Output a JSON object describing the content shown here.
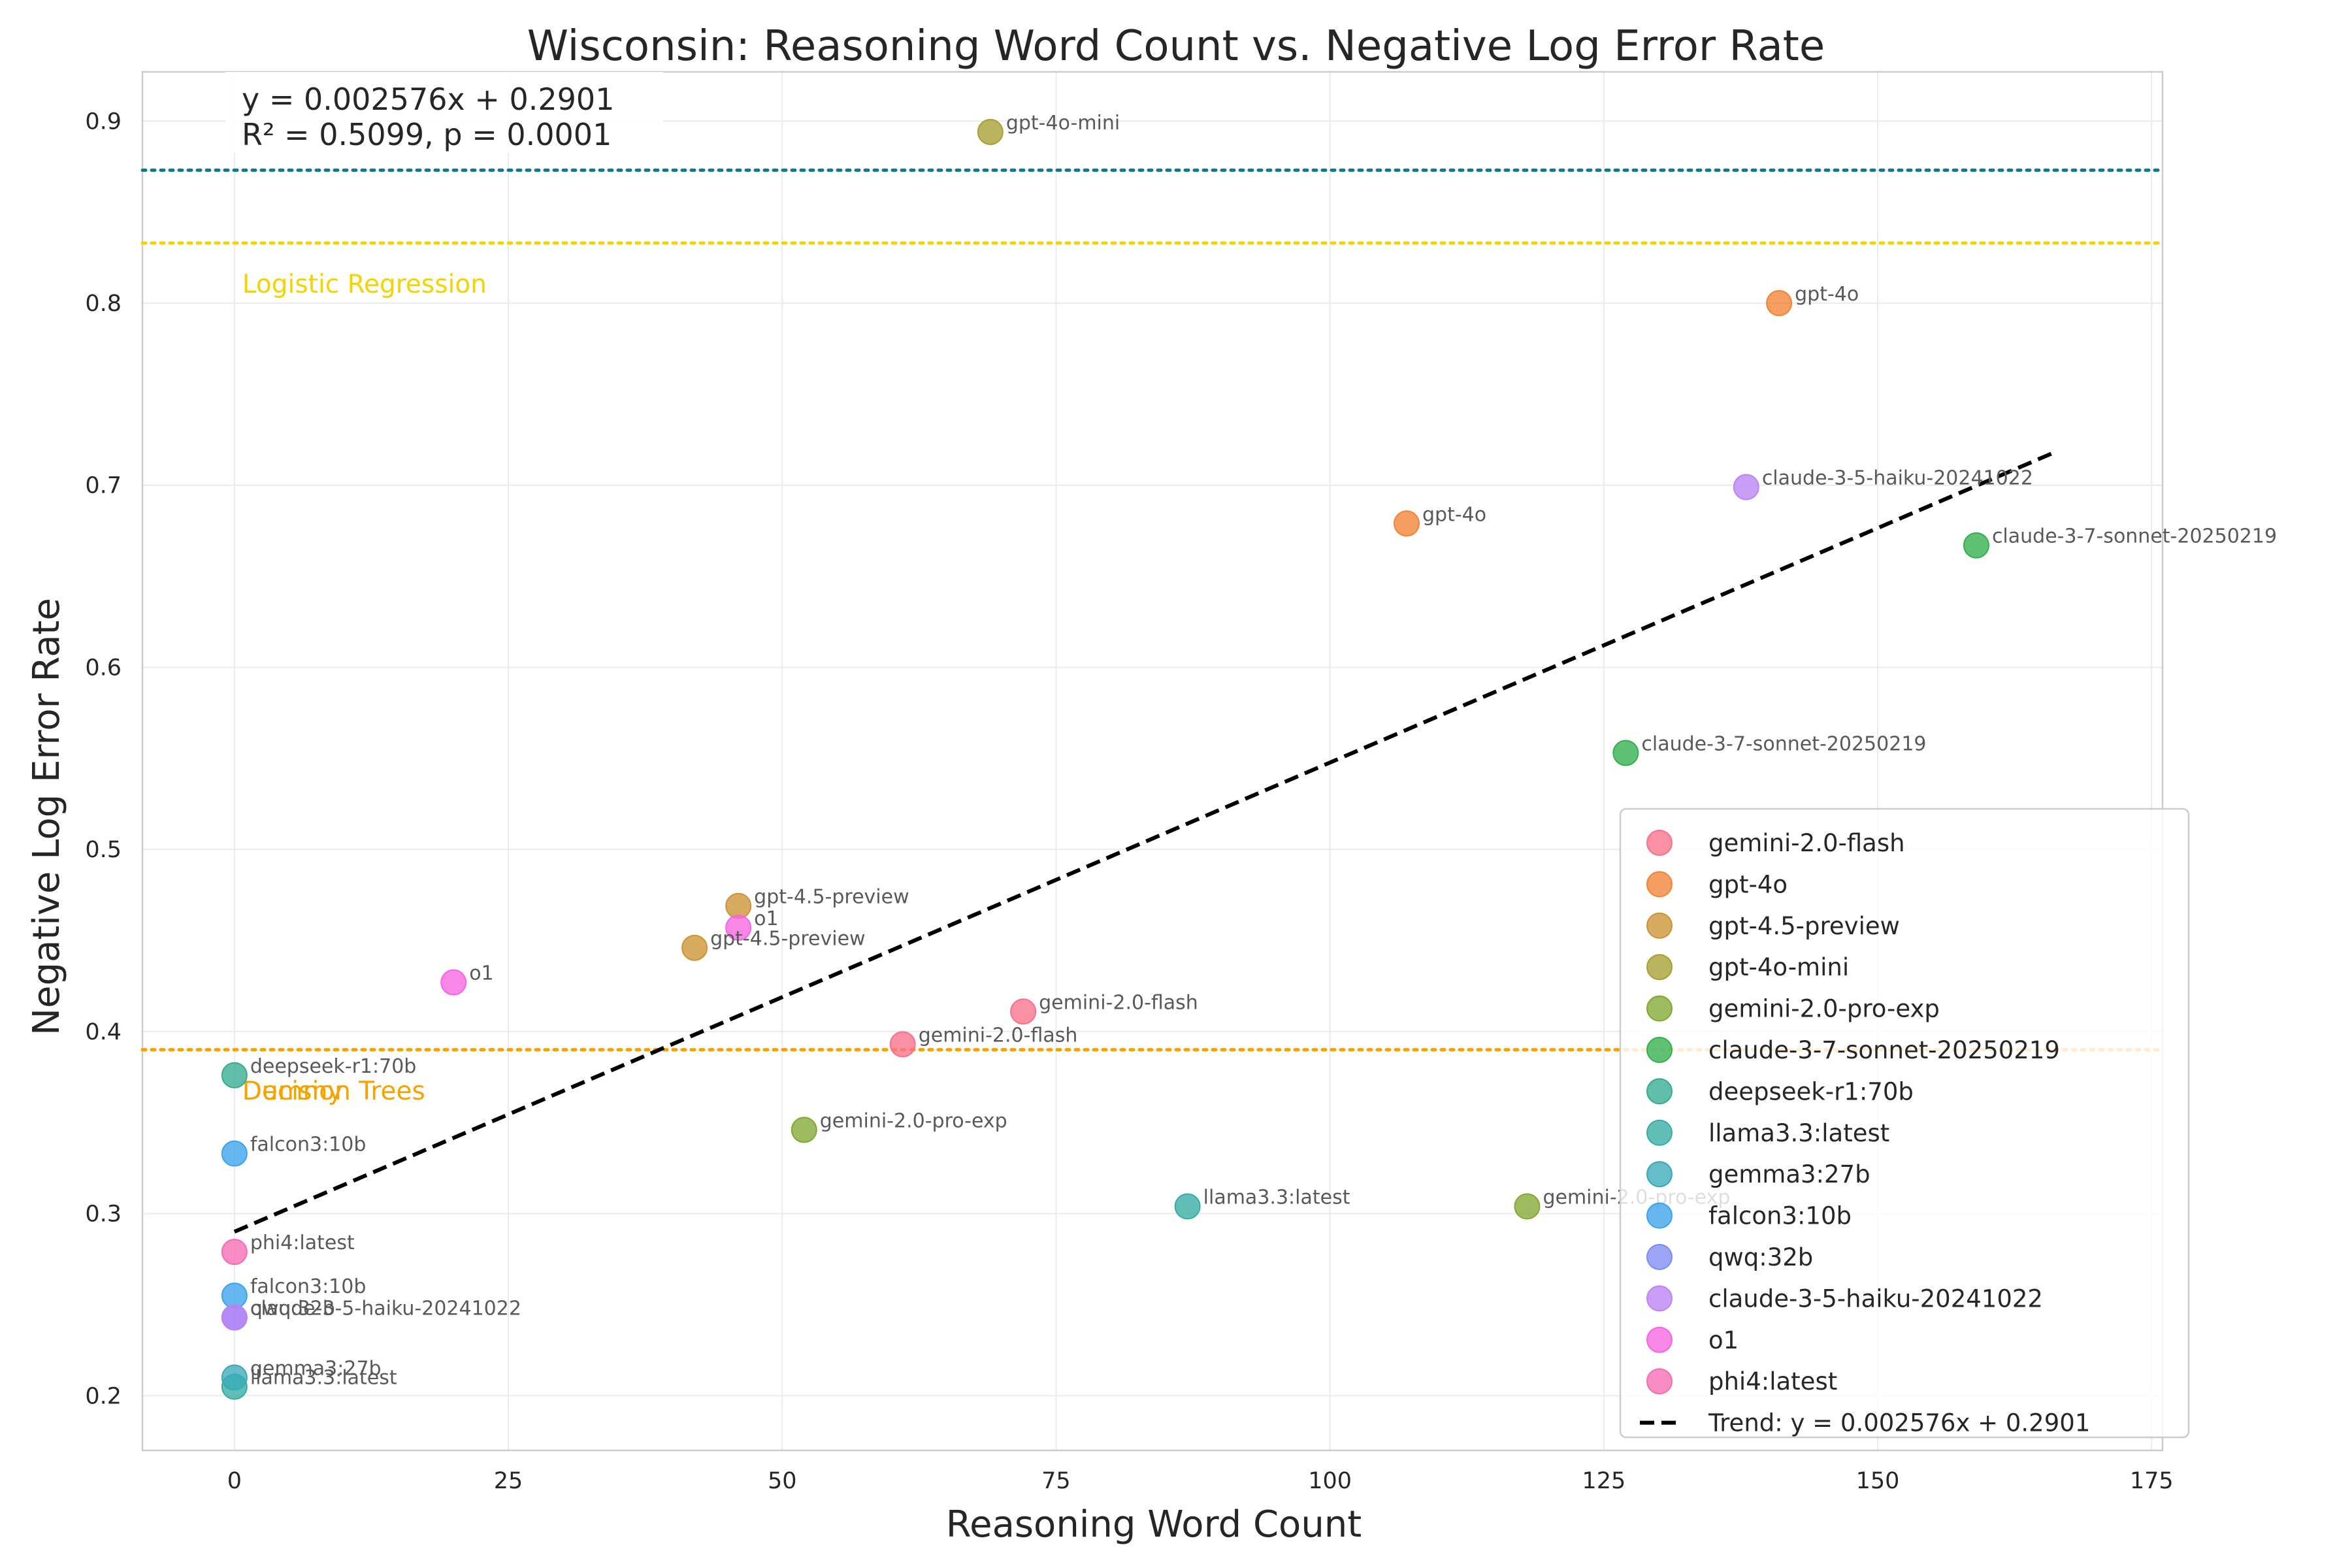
{
  "chart_data": {
    "type": "scatter",
    "title": "Wisconsin: Reasoning Word Count vs. Negative Log Error Rate",
    "xlabel": "Reasoning Word Count",
    "ylabel": "Negative Log Error Rate",
    "xlim": [
      -8.4,
      176
    ],
    "ylim": [
      0.17,
      0.927
    ],
    "xticks": [
      0,
      25,
      50,
      75,
      100,
      125,
      150,
      175
    ],
    "yticks": [
      0.2,
      0.3,
      0.4,
      0.5,
      0.6,
      0.7,
      0.8,
      0.9
    ],
    "grid": true,
    "legend_position": "lower-right",
    "equation_box": {
      "line1": "y = 0.002576x + 0.2901",
      "line2": "R² = 0.5099, p = 0.0001"
    },
    "trend": {
      "label": "Trend: y = 0.002576x + 0.2901",
      "slope": 0.002576,
      "intercept": 0.2901,
      "x_range": [
        0,
        166
      ],
      "color": "#000000"
    },
    "reference_lines": [
      {
        "label": "",
        "y": 0.873,
        "color": "#0e7c86"
      },
      {
        "label": "Logistic Regression",
        "y": 0.833,
        "color": "#f5d300"
      },
      {
        "label": "Decision Trees",
        "y": 0.39,
        "color": "#f5a300"
      },
      {
        "label": "Dummy",
        "y": 0.39,
        "color": "#f5a300"
      }
    ],
    "series": [
      {
        "name": "gemini-2.0-flash",
        "color": "#f77189",
        "points": [
          [
            72,
            0.411
          ],
          [
            61,
            0.393
          ]
        ]
      },
      {
        "name": "gpt-4o",
        "color": "#f28334",
        "points": [
          [
            141,
            0.8
          ],
          [
            107,
            0.679
          ]
        ]
      },
      {
        "name": "gpt-4.5-preview",
        "color": "#cc9433",
        "points": [
          [
            46,
            0.469
          ],
          [
            42,
            0.446
          ]
        ]
      },
      {
        "name": "gpt-4o-mini",
        "color": "#a79f31",
        "points": [
          [
            69,
            0.894
          ]
        ]
      },
      {
        "name": "gemini-2.0-pro-exp",
        "color": "#81a932",
        "points": [
          [
            52,
            0.346
          ],
          [
            118,
            0.304
          ]
        ]
      },
      {
        "name": "claude-3-7-sonnet-20250219",
        "color": "#32b04d",
        "points": [
          [
            159,
            0.667
          ],
          [
            127,
            0.553
          ]
        ]
      },
      {
        "name": "deepseek-r1:70b",
        "color": "#35ac8f",
        "points": [
          [
            0,
            0.376
          ]
        ]
      },
      {
        "name": "llama3.3:latest",
        "color": "#36ada4",
        "points": [
          [
            87,
            0.304
          ],
          [
            0,
            0.205
          ]
        ]
      },
      {
        "name": "gemma3:27b",
        "color": "#38aab7",
        "points": [
          [
            0,
            0.21
          ]
        ]
      },
      {
        "name": "falcon3:10b",
        "color": "#3ba3ec",
        "points": [
          [
            0,
            0.333
          ],
          [
            0,
            0.255
          ]
        ]
      },
      {
        "name": "qwq:32b",
        "color": "#7d8cf4",
        "points": [
          [
            0,
            0.243
          ]
        ]
      },
      {
        "name": "claude-3-5-haiku-20241022",
        "color": "#bb83f4",
        "points": [
          [
            138,
            0.699
          ],
          [
            0,
            0.243
          ]
        ]
      },
      {
        "name": "o1",
        "color": "#f665e1",
        "points": [
          [
            20,
            0.427
          ],
          [
            46,
            0.457
          ]
        ]
      },
      {
        "name": "phi4:latest",
        "color": "#f66bb4",
        "points": [
          [
            0,
            0.279
          ]
        ]
      }
    ]
  }
}
